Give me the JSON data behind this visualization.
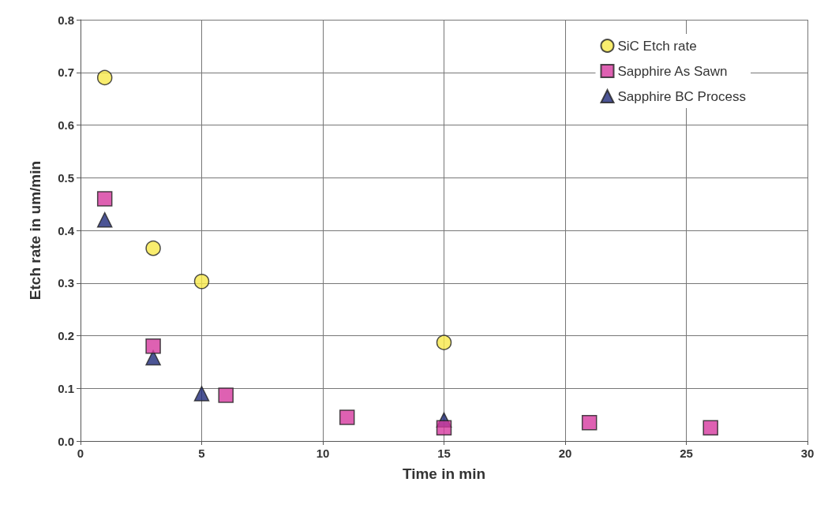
{
  "chart_data": {
    "type": "scatter",
    "xlabel": "Time in min",
    "ylabel": "Etch rate in um/min",
    "xlim": [
      0,
      30
    ],
    "xticks": [
      0,
      5,
      10,
      15,
      20,
      25,
      30
    ],
    "ylim": [
      0,
      0.8
    ],
    "yticks": [
      {
        "value": 0,
        "label": "0.0"
      },
      0.1,
      0.2,
      0.3,
      0.4,
      0.5,
      0.6,
      0.7,
      0.8
    ],
    "grid": true,
    "legend": "top right",
    "series": [
      {
        "name": "SiC Etch rate",
        "color": "#f7e84a",
        "marker": "circle",
        "x": [
          1,
          3,
          5,
          15
        ],
        "values": [
          0.69,
          0.366,
          0.303,
          0.187
        ]
      },
      {
        "name": "Sapphire As Sawn",
        "color": "#d63a9f",
        "marker": "square",
        "x": [
          1,
          3,
          6,
          11,
          15,
          21,
          26
        ],
        "values": [
          0.46,
          0.18,
          0.087,
          0.045,
          0.025,
          0.035,
          0.025
        ]
      },
      {
        "name": "Sapphire BC Process",
        "color": "#1f2a7a",
        "marker": "triangle",
        "x": [
          1,
          3,
          5,
          15
        ],
        "values": [
          0.42,
          0.158,
          0.09,
          0.04
        ]
      }
    ]
  }
}
